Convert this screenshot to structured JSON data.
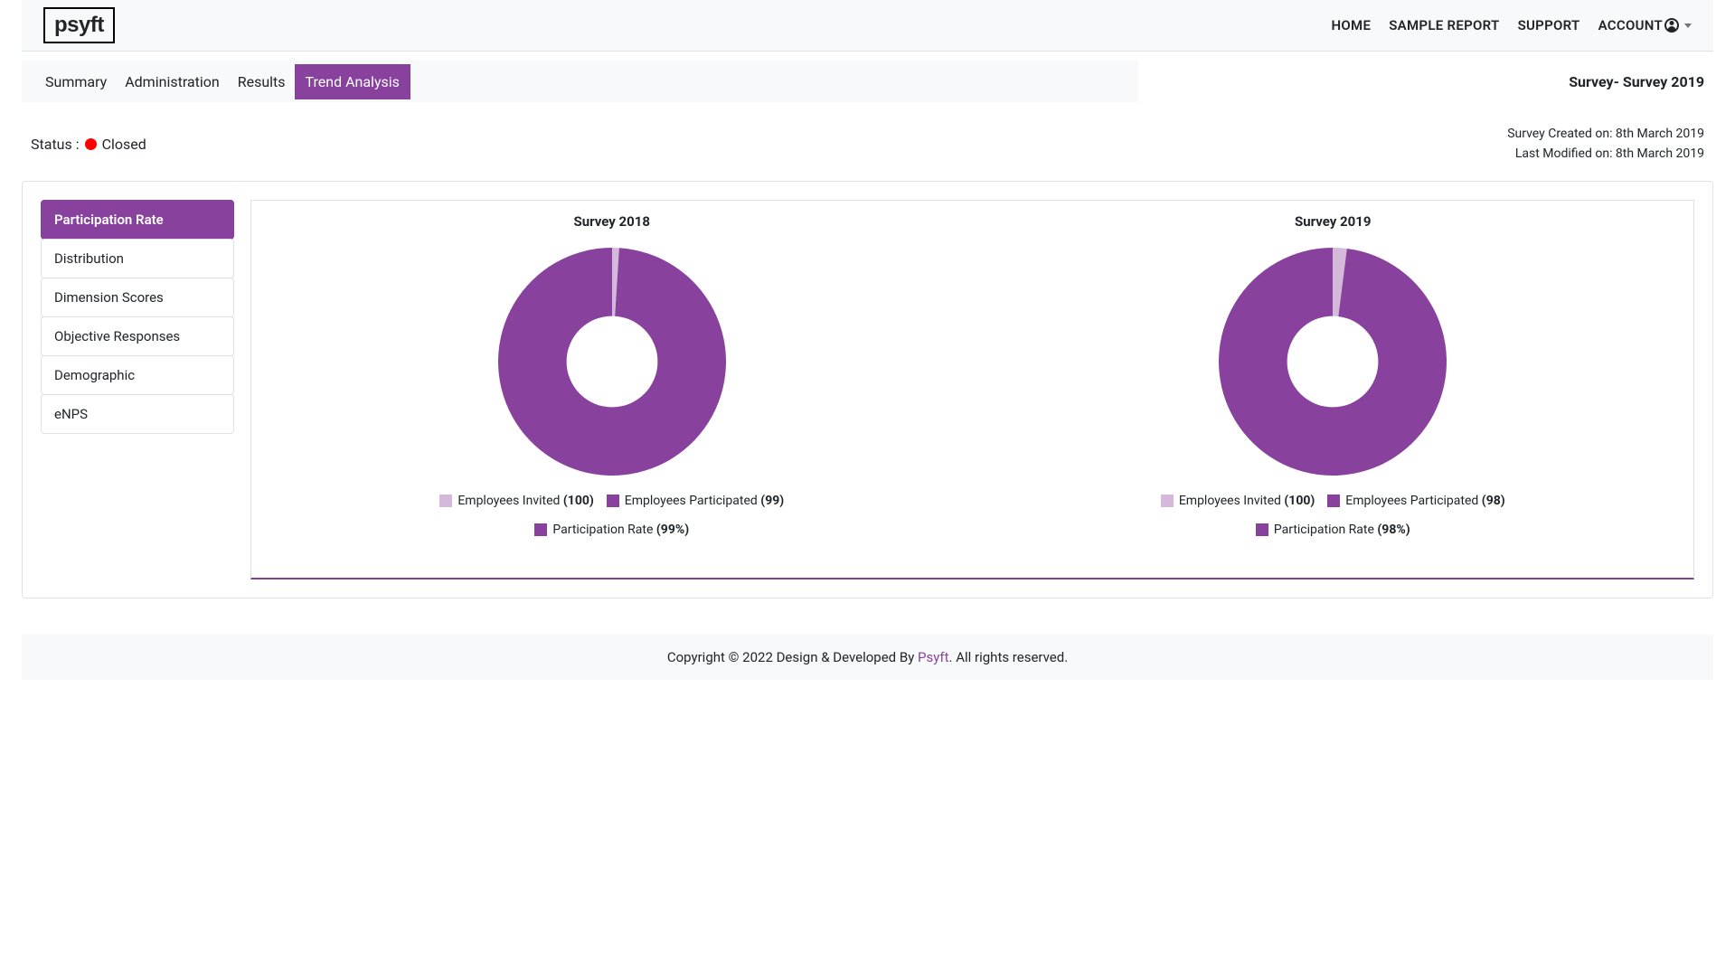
{
  "brand": "psyft",
  "nav": {
    "home": "HOME",
    "sample_report": "SAMPLE REPORT",
    "support": "SUPPORT",
    "account": "ACCOUNT"
  },
  "tabs": {
    "summary": "Summary",
    "administration": "Administration",
    "results": "Results",
    "trend_analysis": "Trend Analysis",
    "active": "trend_analysis"
  },
  "survey_title": "Survey- Survey 2019",
  "status": {
    "label": "Status :",
    "value": "Closed",
    "dot_color": "#ff0000"
  },
  "meta": {
    "created": "Survey Created on: 8th March 2019",
    "modified": "Last Modified on: 8th March 2019"
  },
  "sidebar": [
    {
      "key": "participation",
      "label": "Participation Rate",
      "active": true
    },
    {
      "key": "distribution",
      "label": "Distribution",
      "active": false
    },
    {
      "key": "dimension",
      "label": "Dimension Scores",
      "active": false
    },
    {
      "key": "objective",
      "label": "Objective Responses",
      "active": false
    },
    {
      "key": "demographic",
      "label": "Demographic",
      "active": false
    },
    {
      "key": "enps",
      "label": "eNPS",
      "active": false
    }
  ],
  "colors": {
    "accent": "#88419d",
    "light_slice": "#d4b9da",
    "dark_slice": "#88419d",
    "card_border": "#e0e0e0",
    "chart_bottom_border": "#88419d"
  },
  "charts": [
    {
      "title": "Survey 2018",
      "type": "donut",
      "radius": 126,
      "inner_radius_ratio": 0.4,
      "background_color": "#ffffff",
      "slices": [
        {
          "label": "Employees Invited",
          "value_display": "(100)",
          "fraction": 0.01,
          "color": "#d4b9da"
        },
        {
          "label": "Employees Participated",
          "value_display": "(99)",
          "fraction": 0.99,
          "color": "#88419d"
        }
      ],
      "footer": {
        "label": "Participation Rate",
        "value_display": "(99%)",
        "swatch": "#88419d"
      }
    },
    {
      "title": "Survey 2019",
      "type": "donut",
      "radius": 126,
      "inner_radius_ratio": 0.4,
      "background_color": "#ffffff",
      "slices": [
        {
          "label": "Employees Invited",
          "value_display": "(100)",
          "fraction": 0.02,
          "color": "#d4b9da"
        },
        {
          "label": "Employees Participated",
          "value_display": "(98)",
          "fraction": 0.98,
          "color": "#88419d"
        }
      ],
      "footer": {
        "label": "Participation Rate",
        "value_display": "(98%)",
        "swatch": "#88419d"
      }
    }
  ],
  "footer": {
    "pre": "Copyright © 2022 Design & Developed By ",
    "link": "Psyft",
    "post": ". All rights reserved."
  }
}
